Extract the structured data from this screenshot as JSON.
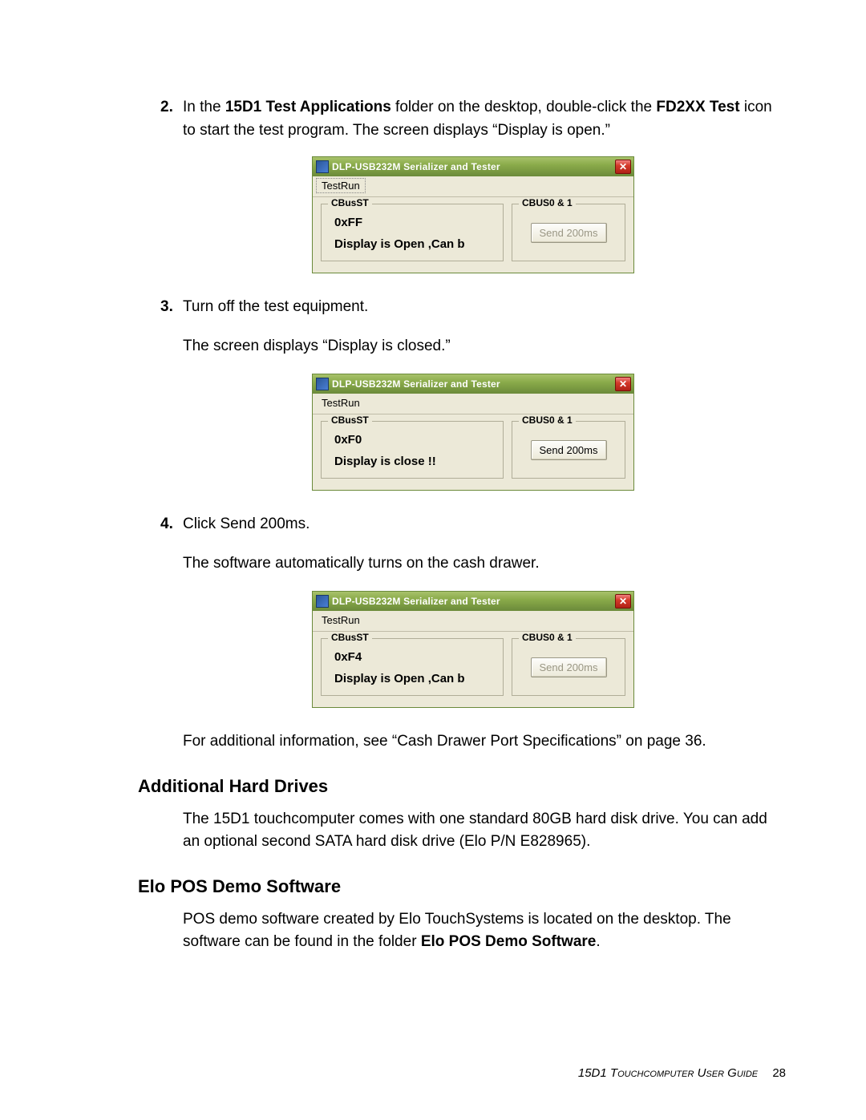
{
  "steps": {
    "s2": {
      "num": "2.",
      "text_before": "In the ",
      "bold1": "15D1 Test Applications",
      "text_mid1": " folder on the desktop, double-click the ",
      "bold2": "FD2XX Test",
      "text_after": " icon to start the test program. The screen displays “Display is open.”"
    },
    "s3": {
      "num": "3.",
      "text": "Turn off the test equipment.",
      "sub": "The screen displays “Display is closed.”"
    },
    "s4": {
      "num": "4.",
      "text": "Click Send 200ms.",
      "sub": "The software automatically turns on the cash drawer."
    }
  },
  "dialogs": {
    "title": "DLP-USB232M Serializer and Tester",
    "menu_label": "TestRun",
    "group_left_legend": "CBusST",
    "group_right_legend": "CBUS0 & 1",
    "button_label": "Send 200ms",
    "d1": {
      "value": "0xFF",
      "status": "Display  is Open ,Can b",
      "btn_enabled": false,
      "menu_dotted": true
    },
    "d2": {
      "value": "0xF0",
      "status": "Display  is close !!",
      "btn_enabled": true,
      "menu_dotted": false
    },
    "d3": {
      "value": "0xF4",
      "status": "Display  is Open ,Can b",
      "btn_enabled": false,
      "menu_dotted": false
    }
  },
  "after_dialogs_para": "For additional information, see “Cash Drawer Port Specifications” on page 36.",
  "sections": {
    "hdd": {
      "heading": "Additional Hard Drives",
      "para": "The 15D1 touchcomputer comes with one standard 80GB hard disk drive. You can add an optional second SATA hard disk drive (Elo P/N E828965)."
    },
    "pos": {
      "heading": "Elo POS Demo Software",
      "para_before": "POS demo software created by Elo TouchSystems is located on the desktop. The software can be found in the folder ",
      "para_bold": "Elo POS Demo Software",
      "para_after": "."
    }
  },
  "footer": {
    "title": "15D1 Touchcomputer User Guide",
    "page": "28"
  },
  "colors": {
    "titlebar_gradient": [
      "#a8c26b",
      "#8aab4a",
      "#6b8a3a"
    ],
    "dialog_bg": "#ece9d8",
    "close_btn_gradient": [
      "#f08080",
      "#d43a2a",
      "#b02016"
    ]
  }
}
